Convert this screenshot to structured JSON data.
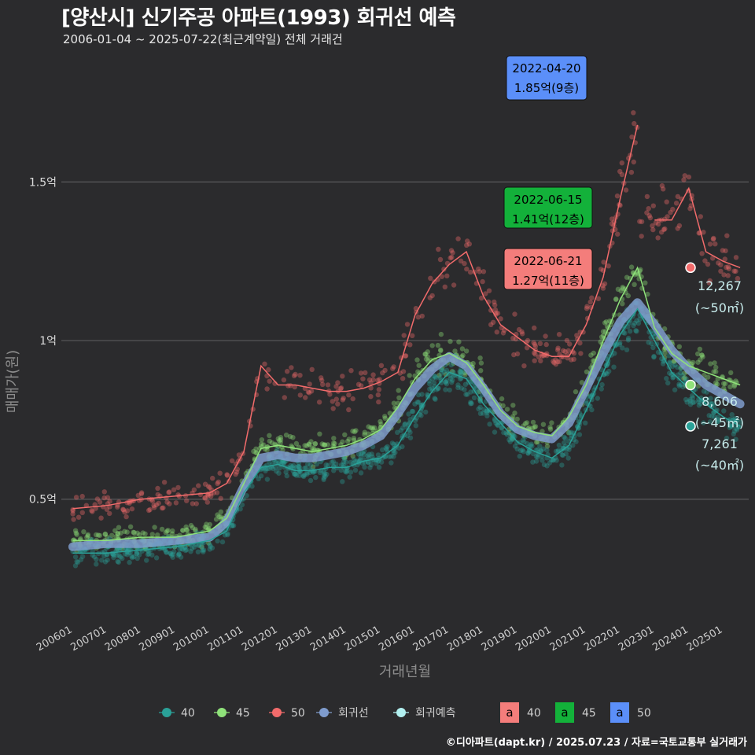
{
  "title": "[양산시] 신기주공 아파트(1993) 회귀선 예측",
  "subtitle": "2006-01-04 ~ 2025-07-22(최근계약일) 전체 거래건",
  "credit": "©디아파트(dapt.kr) / 2025.07.23 / 자료=국토교통부 실거래가",
  "colors": {
    "background": "#2b2b2d",
    "grid": "#5a5a5c",
    "s40": "#2aa198",
    "s45": "#8fe27a",
    "s50": "#f26b6b",
    "regression": "#7f9ccd",
    "forecast": "#b2f0f0",
    "box40": "#f47d7b",
    "box45": "#13b13a",
    "box50": "#5b8ff9"
  },
  "chart_data": {
    "type": "scatter",
    "xlabel": "거래년월",
    "ylabel": "매매가(원)",
    "x_ticks": [
      "200601",
      "200701",
      "200801",
      "200901",
      "201001",
      "201101",
      "201201",
      "201301",
      "201401",
      "201501",
      "201601",
      "201701",
      "201801",
      "201901",
      "202001",
      "202101",
      "202201",
      "202301",
      "202401",
      "202501"
    ],
    "y_ticks": [
      {
        "value": 0.5,
        "label": "0.5억"
      },
      {
        "value": 1.0,
        "label": "1억"
      },
      {
        "value": 1.5,
        "label": "1.5억"
      }
    ],
    "xlim": [
      "2005-09",
      "2025-10"
    ],
    "ylim": [
      0.12,
      1.92
    ],
    "grid": true,
    "legend_position": "bottom",
    "series": [
      {
        "name": "40",
        "color": "#2aa198",
        "line": [
          [
            "2006-01",
            0.33
          ],
          [
            "2007-01",
            0.33
          ],
          [
            "2008-01",
            0.34
          ],
          [
            "2009-01",
            0.35
          ],
          [
            "2010-01",
            0.37
          ],
          [
            "2010-07",
            0.4
          ],
          [
            "2011-01",
            0.52
          ],
          [
            "2011-07",
            0.6
          ],
          [
            "2012-01",
            0.61
          ],
          [
            "2012-07",
            0.59
          ],
          [
            "2013-01",
            0.59
          ],
          [
            "2013-07",
            0.6
          ],
          [
            "2014-01",
            0.6
          ],
          [
            "2014-07",
            0.62
          ],
          [
            "2015-01",
            0.63
          ],
          [
            "2015-07",
            0.67
          ],
          [
            "2016-01",
            0.76
          ],
          [
            "2016-07",
            0.84
          ],
          [
            "2017-01",
            0.9
          ],
          [
            "2017-07",
            0.88
          ],
          [
            "2018-01",
            0.8
          ],
          [
            "2018-07",
            0.74
          ],
          [
            "2019-01",
            0.68
          ],
          [
            "2019-07",
            0.65
          ],
          [
            "2020-01",
            0.63
          ],
          [
            "2020-07",
            0.67
          ],
          [
            "2021-01",
            0.78
          ],
          [
            "2021-07",
            0.9
          ],
          [
            "2022-01",
            1.02
          ],
          [
            "2022-07",
            1.1
          ],
          [
            "2023-01",
            1.0
          ],
          [
            "2023-07",
            0.9
          ],
          [
            "2024-01",
            0.85
          ],
          [
            "2024-07",
            0.8
          ],
          [
            "2025-01",
            0.76
          ],
          [
            "2025-07",
            0.73
          ]
        ],
        "end_value": "7,261",
        "end_area": "(~40㎡)"
      },
      {
        "name": "45",
        "color": "#8fe27a",
        "line": [
          [
            "2006-01",
            0.37
          ],
          [
            "2007-01",
            0.37
          ],
          [
            "2008-01",
            0.38
          ],
          [
            "2009-01",
            0.38
          ],
          [
            "2010-01",
            0.4
          ],
          [
            "2010-07",
            0.44
          ],
          [
            "2011-01",
            0.55
          ],
          [
            "2011-07",
            0.66
          ],
          [
            "2012-01",
            0.67
          ],
          [
            "2012-07",
            0.66
          ],
          [
            "2013-01",
            0.65
          ],
          [
            "2013-07",
            0.66
          ],
          [
            "2014-01",
            0.67
          ],
          [
            "2014-07",
            0.69
          ],
          [
            "2015-01",
            0.72
          ],
          [
            "2015-07",
            0.79
          ],
          [
            "2016-01",
            0.88
          ],
          [
            "2016-07",
            0.94
          ],
          [
            "2017-01",
            0.96
          ],
          [
            "2017-07",
            0.93
          ],
          [
            "2018-01",
            0.86
          ],
          [
            "2018-07",
            0.78
          ],
          [
            "2019-01",
            0.73
          ],
          [
            "2019-07",
            0.71
          ],
          [
            "2020-01",
            0.7
          ],
          [
            "2020-07",
            0.76
          ],
          [
            "2021-01",
            0.86
          ],
          [
            "2021-07",
            1.0
          ],
          [
            "2022-01",
            1.13
          ],
          [
            "2022-07",
            1.23
          ],
          [
            "2023-01",
            1.04
          ],
          [
            "2023-07",
            0.96
          ],
          [
            "2024-01",
            0.92
          ],
          [
            "2024-07",
            0.9
          ],
          [
            "2025-01",
            0.88
          ],
          [
            "2025-07",
            0.86
          ]
        ],
        "end_value": "8,606",
        "end_area": "(~45㎡)"
      },
      {
        "name": "50",
        "color": "#f26b6b",
        "line": [
          [
            "2006-01",
            0.47
          ],
          [
            "2007-01",
            0.48
          ],
          [
            "2008-01",
            0.5
          ],
          [
            "2009-01",
            0.51
          ],
          [
            "2010-01",
            0.52
          ],
          [
            "2010-07",
            0.55
          ],
          [
            "2011-01",
            0.65
          ],
          [
            "2011-07",
            0.92
          ],
          [
            "2012-01",
            0.86
          ],
          [
            "2012-07",
            0.86
          ],
          [
            "2013-01",
            0.85
          ],
          [
            "2013-07",
            0.84
          ],
          [
            "2014-01",
            0.84
          ],
          [
            "2014-07",
            0.85
          ],
          [
            "2015-01",
            0.87
          ],
          [
            "2015-07",
            0.9
          ],
          [
            "2016-01",
            1.08
          ],
          [
            "2016-07",
            1.18
          ],
          [
            "2017-01",
            1.24
          ],
          [
            "2017-07",
            1.28
          ],
          [
            "2018-01",
            1.14
          ],
          [
            "2018-07",
            1.05
          ],
          [
            "2019-01",
            1.01
          ],
          [
            "2019-07",
            0.97
          ],
          [
            "2020-01",
            0.95
          ],
          [
            "2020-07",
            0.95
          ],
          [
            "2021-01",
            1.05
          ],
          [
            "2021-07",
            1.2
          ],
          [
            "2022-01",
            1.45
          ],
          [
            "2022-07",
            1.68
          ]
        ],
        "line2": [
          [
            "2023-01",
            1.38
          ],
          [
            "2023-07",
            1.38
          ],
          [
            "2024-01",
            1.48
          ],
          [
            "2024-07",
            1.28
          ],
          [
            "2025-01",
            1.25
          ],
          [
            "2025-07",
            1.23
          ]
        ],
        "end_value": "12,267",
        "end_area": "(~50㎡)"
      },
      {
        "name": "회귀선",
        "color": "#7f9ccd",
        "line": [
          [
            "2006-01",
            0.35
          ],
          [
            "2007-01",
            0.36
          ],
          [
            "2008-01",
            0.36
          ],
          [
            "2009-01",
            0.37
          ],
          [
            "2010-01",
            0.38
          ],
          [
            "2010-07",
            0.43
          ],
          [
            "2011-01",
            0.54
          ],
          [
            "2011-07",
            0.63
          ],
          [
            "2012-01",
            0.64
          ],
          [
            "2012-07",
            0.63
          ],
          [
            "2013-01",
            0.63
          ],
          [
            "2013-07",
            0.64
          ],
          [
            "2014-01",
            0.65
          ],
          [
            "2014-07",
            0.67
          ],
          [
            "2015-01",
            0.7
          ],
          [
            "2015-07",
            0.77
          ],
          [
            "2016-01",
            0.85
          ],
          [
            "2016-07",
            0.91
          ],
          [
            "2017-01",
            0.95
          ],
          [
            "2017-07",
            0.92
          ],
          [
            "2018-01",
            0.85
          ],
          [
            "2018-07",
            0.77
          ],
          [
            "2019-01",
            0.72
          ],
          [
            "2019-07",
            0.7
          ],
          [
            "2020-01",
            0.69
          ],
          [
            "2020-07",
            0.74
          ],
          [
            "2021-01",
            0.85
          ],
          [
            "2021-07",
            0.96
          ],
          [
            "2022-01",
            1.06
          ],
          [
            "2022-07",
            1.12
          ],
          [
            "2023-01",
            1.05
          ],
          [
            "2023-07",
            0.97
          ],
          [
            "2024-01",
            0.91
          ],
          [
            "2024-07",
            0.86
          ],
          [
            "2025-01",
            0.83
          ],
          [
            "2025-07",
            0.8
          ]
        ]
      }
    ],
    "annotations": [
      {
        "label1": "2022-04-20",
        "label2": "1.85억(9층)",
        "fill": "#5b8ff9"
      },
      {
        "label1": "2022-06-15",
        "label2": "1.41억(12층)",
        "fill": "#13b13a"
      },
      {
        "label1": "2022-06-21",
        "label2": "1.27억(11층)",
        "fill": "#f47d7b"
      }
    ],
    "legend": [
      {
        "label": "40",
        "color": "#2aa198",
        "kind": "point"
      },
      {
        "label": "45",
        "color": "#8fe27a",
        "kind": "point"
      },
      {
        "label": "50",
        "color": "#f26b6b",
        "kind": "point"
      },
      {
        "label": "회귀선",
        "color": "#7f9ccd",
        "kind": "point"
      },
      {
        "label": "회귀예측",
        "color": "#b2f0f0",
        "kind": "point"
      },
      {
        "label": "40",
        "color": "#f47d7b",
        "kind": "box",
        "glyph": "a"
      },
      {
        "label": "45",
        "color": "#13b13a",
        "kind": "box",
        "glyph": "a"
      },
      {
        "label": "50",
        "color": "#5b8ff9",
        "kind": "box",
        "glyph": "a"
      }
    ]
  }
}
